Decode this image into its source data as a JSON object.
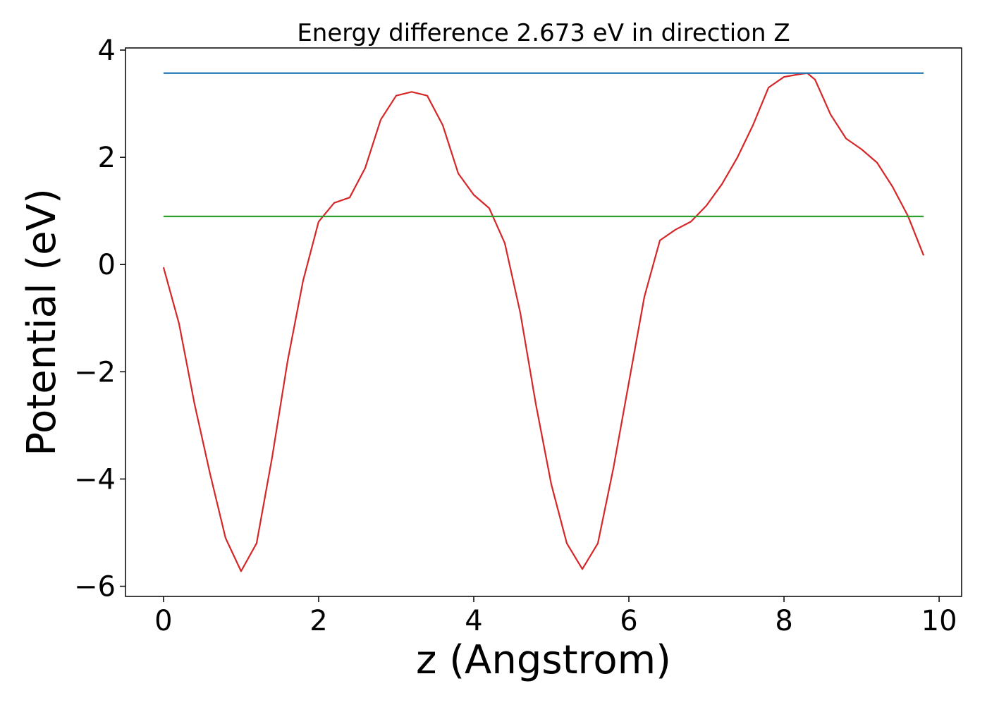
{
  "chart_data": {
    "type": "line",
    "title": "Energy difference 2.673 eV in direction Z",
    "xlabel": "z (Angstrom)",
    "ylabel": "Potential (eV)",
    "xlim": [
      -0.49,
      10.29
    ],
    "ylim": [
      -6.19,
      4.04
    ],
    "xticks": [
      0,
      2,
      4,
      6,
      8,
      10
    ],
    "yticks": [
      {
        "value": -6,
        "label": "−6"
      },
      {
        "value": -4,
        "label": "−4"
      },
      {
        "value": -2,
        "label": "−2"
      },
      0,
      2,
      4
    ],
    "grid": false,
    "series": [
      {
        "color": "#d62728",
        "x": [
          0,
          0.2,
          0.4,
          0.6,
          0.8,
          1.0,
          1.2,
          1.4,
          1.6,
          1.8,
          2.0,
          2.2,
          2.4,
          2.6,
          2.8,
          3.0,
          3.2,
          3.4,
          3.6,
          3.8,
          4.0,
          4.2,
          4.4,
          4.6,
          4.8,
          5.0,
          5.2,
          5.4,
          5.6,
          5.8,
          6.0,
          6.2,
          6.4,
          6.6,
          6.8,
          7.0,
          7.2,
          7.4,
          7.6,
          7.8,
          8.0,
          8.2,
          8.3,
          8.4,
          8.6,
          8.8,
          9.0,
          9.2,
          9.4,
          9.6,
          9.8
        ],
        "values": [
          -0.05,
          -1.1,
          -2.6,
          -3.9,
          -5.1,
          -5.72,
          -5.2,
          -3.6,
          -1.8,
          -0.3,
          0.8,
          1.15,
          1.25,
          1.8,
          2.7,
          3.15,
          3.22,
          3.15,
          2.6,
          1.7,
          1.3,
          1.05,
          0.4,
          -0.9,
          -2.6,
          -4.1,
          -5.2,
          -5.68,
          -5.2,
          -3.8,
          -2.2,
          -0.6,
          0.45,
          0.65,
          0.8,
          1.1,
          1.5,
          2.0,
          2.6,
          3.3,
          3.5,
          3.55,
          3.57,
          3.45,
          2.8,
          2.35,
          2.15,
          1.9,
          1.45,
          0.9,
          0.17
        ]
      },
      {
        "color": "#1f77b4",
        "x": [
          0,
          9.8
        ],
        "values": [
          3.57,
          3.57
        ]
      },
      {
        "color": "#2ca02c",
        "x": [
          0,
          9.8
        ],
        "values": [
          0.897,
          0.897
        ]
      }
    ]
  }
}
